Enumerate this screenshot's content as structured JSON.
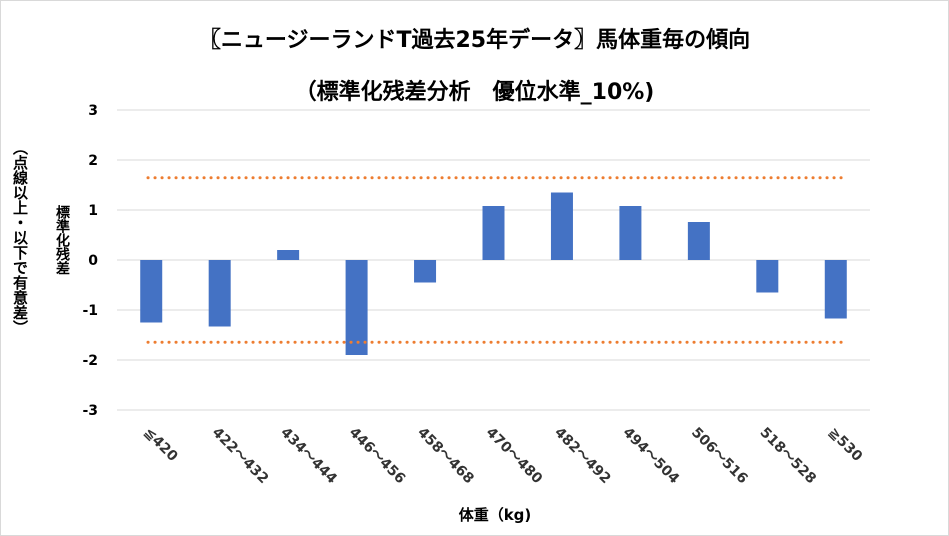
{
  "chart_data": {
    "type": "bar",
    "title": "〖ニュージーランドT過去25年データ〗馬体重毎の傾向",
    "subtitle": "（標準化残差分析　優位水準_10%)",
    "xlabel": "体重（kg)",
    "ylabel": "標準化残差",
    "ylabel_note": "（点線以上・以下で有意差）",
    "categories": [
      "≦420",
      "422～432",
      "434～444",
      "446～456",
      "458～468",
      "470～480",
      "482～492",
      "494～504",
      "506～516",
      "518～528",
      "≧530"
    ],
    "values": [
      -1.25,
      -1.33,
      0.2,
      -1.9,
      -0.45,
      1.08,
      1.35,
      1.08,
      0.76,
      -0.65,
      -1.17
    ],
    "ylim": [
      -3,
      3
    ],
    "yticks": [
      "3",
      "2",
      "1",
      "0",
      "-1",
      "-2",
      "-3"
    ],
    "threshold_upper": 1.645,
    "threshold_lower": -1.645,
    "grid": true,
    "colors": {
      "bar": "#4472c4",
      "threshold": "#ed7d31",
      "grid": "#d9d9d9"
    }
  }
}
